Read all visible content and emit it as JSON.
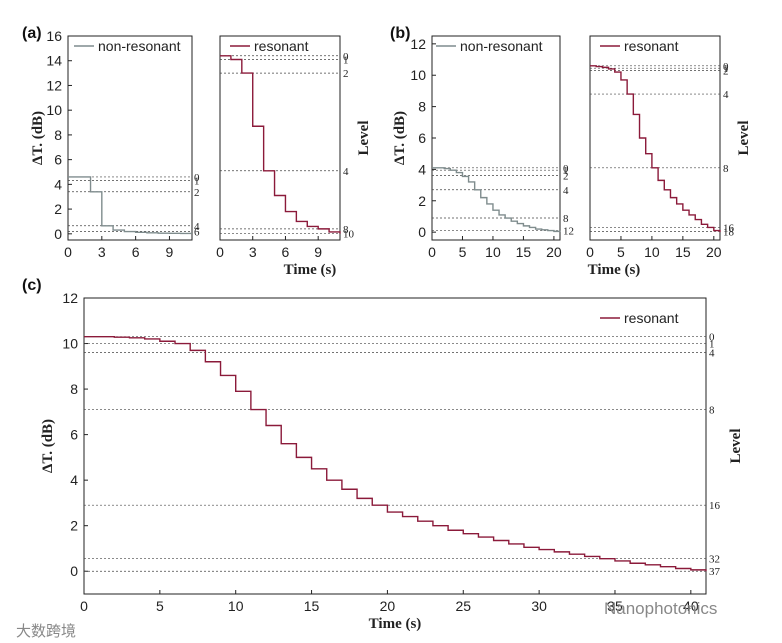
{
  "chart_data": [
    {
      "id": "a-left",
      "panel": "(a)",
      "type": "line",
      "series": [
        {
          "name": "non-resonant",
          "color": "#7f8c8d",
          "x": [
            0,
            1,
            2,
            3,
            4,
            5,
            6,
            7,
            8,
            9,
            10,
            11
          ],
          "y": [
            4.6,
            4.6,
            3.4,
            0.65,
            0.3,
            0.18,
            0.12,
            0.08,
            0.05,
            0.04,
            0.03,
            0.03
          ]
        }
      ],
      "xlim": [
        0,
        11
      ],
      "ylim": [
        -0.5,
        16
      ],
      "xticks": [
        0,
        3,
        6,
        9
      ],
      "yticks": [
        0,
        2,
        4,
        6,
        8,
        10,
        12,
        14,
        16
      ],
      "ylabel": "ΔT. (dB)",
      "xlabel": "",
      "levels": [
        {
          "label": "0",
          "y": 4.6
        },
        {
          "label": "1",
          "y": 4.3
        },
        {
          "label": "2",
          "y": 3.4
        },
        {
          "label": "4",
          "y": 0.65
        },
        {
          "label": "6",
          "y": 0.2
        }
      ]
    },
    {
      "id": "a-right",
      "type": "line",
      "series": [
        {
          "name": "resonant",
          "color": "#8b1a3a",
          "x": [
            0,
            1,
            2,
            3,
            4,
            5,
            6,
            7,
            8,
            9,
            10,
            11
          ],
          "y": [
            14.4,
            14.1,
            13.0,
            8.7,
            5.1,
            3.1,
            1.8,
            1.0,
            0.6,
            0.4,
            0.15,
            0.02
          ]
        }
      ],
      "xlim": [
        0,
        11
      ],
      "ylim": [
        -0.5,
        16
      ],
      "xticks": [
        0,
        3,
        6,
        9
      ],
      "yticks": [],
      "ylabel": "Level",
      "xlabel": "Time (s)",
      "levels": [
        {
          "label": "0",
          "y": 14.4
        },
        {
          "label": "1",
          "y": 14.1
        },
        {
          "label": "2",
          "y": 13.0
        },
        {
          "label": "4",
          "y": 5.1
        },
        {
          "label": "8",
          "y": 0.4
        },
        {
          "label": "10",
          "y": 0.02
        }
      ]
    },
    {
      "id": "b-left",
      "panel": "(b)",
      "type": "line",
      "series": [
        {
          "name": "non-resonant",
          "color": "#7f8c8d",
          "x": [
            0,
            1,
            2,
            3,
            4,
            5,
            6,
            7,
            8,
            9,
            10,
            11,
            12,
            13,
            14,
            15,
            16,
            17,
            18,
            19,
            20,
            21
          ],
          "y": [
            4.1,
            4.1,
            4.05,
            3.95,
            3.8,
            3.55,
            3.2,
            2.7,
            2.2,
            1.8,
            1.4,
            1.1,
            0.9,
            0.7,
            0.55,
            0.4,
            0.3,
            0.2,
            0.15,
            0.1,
            0.05,
            0.02
          ]
        }
      ],
      "xlim": [
        0,
        21
      ],
      "ylim": [
        -0.5,
        12.5
      ],
      "xticks": [
        0,
        5,
        10,
        15,
        20
      ],
      "yticks": [
        0,
        2,
        4,
        6,
        8,
        10,
        12
      ],
      "ylabel": "ΔT. (dB)",
      "xlabel": "",
      "levels": [
        {
          "label": "0",
          "y": 4.1
        },
        {
          "label": "1",
          "y": 3.95
        },
        {
          "label": "2",
          "y": 3.6
        },
        {
          "label": "4",
          "y": 2.7
        },
        {
          "label": "8",
          "y": 0.9
        },
        {
          "label": "12",
          "y": 0.1
        }
      ]
    },
    {
      "id": "b-right",
      "type": "line",
      "series": [
        {
          "name": "resonant",
          "color": "#8b1a3a",
          "x": [
            0,
            1,
            2,
            3,
            4,
            5,
            6,
            7,
            8,
            9,
            10,
            11,
            12,
            13,
            14,
            15,
            16,
            17,
            18,
            19,
            20,
            21
          ],
          "y": [
            10.6,
            10.55,
            10.5,
            10.4,
            10.2,
            9.7,
            8.8,
            7.5,
            6.0,
            5.0,
            4.1,
            3.3,
            2.7,
            2.2,
            1.8,
            1.4,
            1.1,
            0.8,
            0.5,
            0.3,
            0.1,
            0.0
          ]
        }
      ],
      "xlim": [
        0,
        21
      ],
      "ylim": [
        -0.5,
        12.5
      ],
      "xticks": [
        0,
        5,
        10,
        15,
        20
      ],
      "yticks": [],
      "ylabel": "Level",
      "xlabel": "Time (s)",
      "levels": [
        {
          "label": "0",
          "y": 10.6
        },
        {
          "label": "1",
          "y": 10.45
        },
        {
          "label": "2",
          "y": 10.3
        },
        {
          "label": "4",
          "y": 8.8
        },
        {
          "label": "8",
          "y": 4.1
        },
        {
          "label": "16",
          "y": 0.3
        },
        {
          "label": "18",
          "y": 0.05
        }
      ]
    },
    {
      "id": "c",
      "panel": "(c)",
      "type": "line",
      "series": [
        {
          "name": "resonant",
          "color": "#8b1a3a",
          "x": [
            0,
            1,
            2,
            3,
            4,
            5,
            6,
            7,
            8,
            9,
            10,
            11,
            12,
            13,
            14,
            15,
            16,
            17,
            18,
            19,
            20,
            21,
            22,
            23,
            24,
            25,
            26,
            27,
            28,
            29,
            30,
            31,
            32,
            33,
            34,
            35,
            36,
            37,
            38,
            39,
            40,
            41
          ],
          "y": [
            10.3,
            10.3,
            10.28,
            10.25,
            10.2,
            10.1,
            10.0,
            9.7,
            9.2,
            8.6,
            7.9,
            7.1,
            6.4,
            5.6,
            5.0,
            4.5,
            4.0,
            3.6,
            3.2,
            2.9,
            2.6,
            2.4,
            2.2,
            2.0,
            1.8,
            1.65,
            1.5,
            1.35,
            1.2,
            1.05,
            0.95,
            0.85,
            0.75,
            0.65,
            0.55,
            0.45,
            0.35,
            0.28,
            0.2,
            0.12,
            0.06,
            0.0
          ]
        }
      ],
      "xlim": [
        0,
        41
      ],
      "ylim": [
        -1,
        12
      ],
      "xticks": [
        0,
        5,
        10,
        15,
        20,
        25,
        30,
        35,
        40
      ],
      "yticks": [
        0,
        2,
        4,
        6,
        8,
        10,
        12
      ],
      "ylabel": "ΔT. (dB)",
      "xlabel": "Time (s)",
      "ylabel2": "Level",
      "levels": [
        {
          "label": "0",
          "y": 10.3
        },
        {
          "label": "1",
          "y": 10.0
        },
        {
          "label": "4",
          "y": 9.6
        },
        {
          "label": "8",
          "y": 7.1
        },
        {
          "label": "16",
          "y": 2.9
        },
        {
          "label": "32",
          "y": 0.55
        },
        {
          "label": "37",
          "y": 0.0
        }
      ]
    }
  ],
  "watermarks": {
    "left": "大数跨境",
    "right": "Nanophotonics"
  }
}
